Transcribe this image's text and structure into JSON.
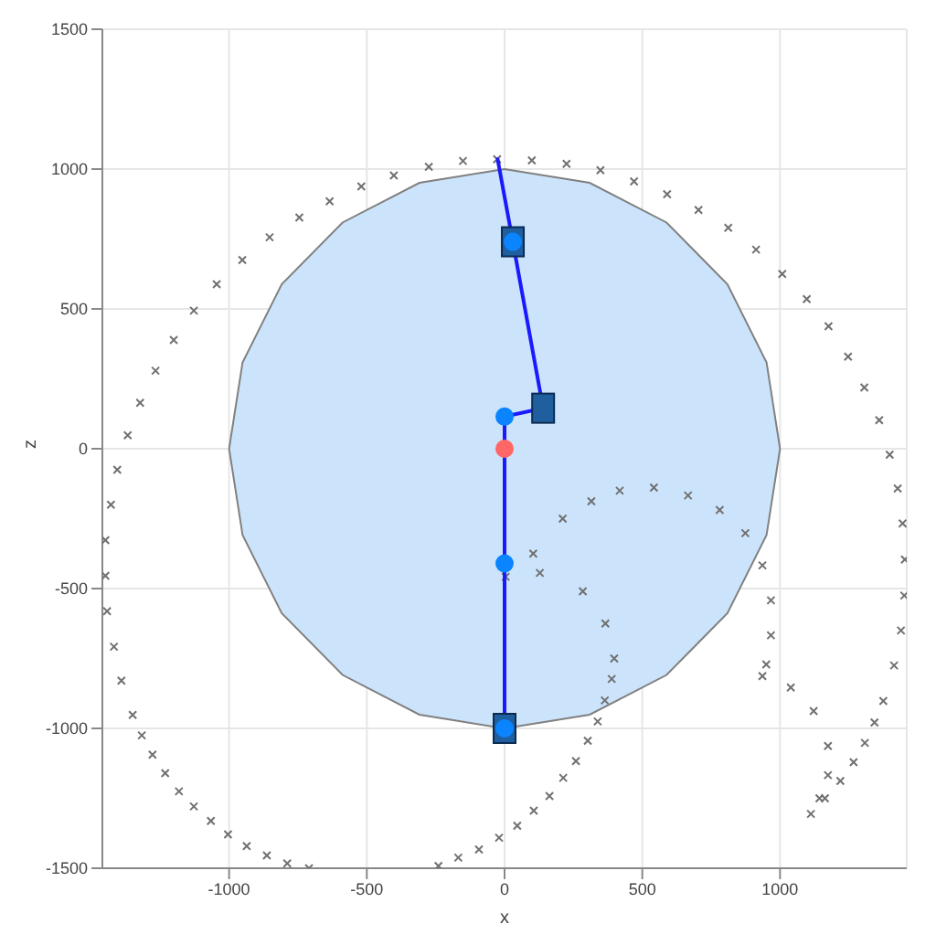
{
  "chart_data": {
    "type": "scatter",
    "xlabel": "x",
    "ylabel": "z",
    "xlim": [
      -1460,
      1460
    ],
    "ylim": [
      -1500,
      1500
    ],
    "xticks": [
      -1000,
      -500,
      0,
      500,
      1000
    ],
    "yticks": [
      -1500,
      -1000,
      -500,
      0,
      500,
      1000,
      1500
    ],
    "grid": true,
    "series": [
      {
        "type": "area",
        "color": "#cce4fb",
        "x": [
          1000,
          951,
          809,
          588,
          309,
          0,
          -309,
          -588,
          -809,
          -951,
          -1000,
          -951,
          -809,
          -588,
          -309,
          0,
          309,
          588,
          809,
          951,
          1000
        ],
        "values": [
          0,
          309,
          588,
          809,
          951,
          1000,
          951,
          809,
          588,
          309,
          0,
          -309,
          -588,
          -809,
          -951,
          -1000,
          -951,
          -809,
          -588,
          -309,
          0
        ]
      },
      {
        "marker": "cross",
        "color": "#707070",
        "x": [
          -1368,
          -1323,
          -1267,
          -1201,
          -1128,
          -1045,
          -952,
          -853,
          -745,
          -635,
          -520,
          -402,
          -275,
          -151,
          -27,
          99,
          225,
          348,
          470,
          590,
          704,
          812,
          913,
          1008,
          1097,
          1176,
          1247,
          1306,
          1360,
          1398,
          1427,
          1445,
          1453,
          1451,
          1439,
          1414,
          1375,
          1343,
          1308,
          1267,
          1219,
          1163,
          -1406,
          -1429,
          -1449,
          -1449,
          -1443,
          -1418,
          -1391,
          -1350,
          -1317,
          -1278,
          -1232,
          -1182,
          -1128,
          -1066,
          -1004,
          -936,
          -863,
          -789,
          -710,
          -240,
          -168,
          -93,
          -20,
          46,
          106,
          163,
          213,
          259,
          302,
          338,
          364,
          389,
          4,
          128,
          284,
          366,
          398,
          104,
          211,
          315,
          418,
          542,
          666,
          781,
          874,
          936,
          967,
          967,
          950,
          936,
          1039,
          1122,
          1174,
          1174,
          1143,
          1112
        ],
        "values": [
          48,
          164,
          279,
          389,
          494,
          588,
          675,
          756,
          827,
          885,
          938,
          977,
          1008,
          1029,
          1035,
          1031,
          1019,
          996,
          956,
          910,
          854,
          790,
          712,
          625,
          535,
          438,
          329,
          219,
          102,
          -21,
          -142,
          -267,
          -396,
          -525,
          -650,
          -775,
          -902,
          -979,
          -1052,
          -1121,
          -1188,
          -1250,
          -75,
          -200,
          -327,
          -454,
          -581,
          -708,
          -829,
          -952,
          -1025,
          -1094,
          -1160,
          -1225,
          -1279,
          -1331,
          -1379,
          -1421,
          -1454,
          -1483,
          -1500,
          -1492,
          -1462,
          -1433,
          -1391,
          -1348,
          -1294,
          -1242,
          -1177,
          -1117,
          -1044,
          -975,
          -900,
          -823,
          -458,
          -444,
          -510,
          -625,
          -750,
          -375,
          -250,
          -188,
          -150,
          -139,
          -167,
          -219,
          -302,
          -417,
          -542,
          -667,
          -771,
          -813,
          -854,
          -938,
          -1063,
          -1167,
          -1250,
          -1306
        ]
      },
      {
        "type": "line",
        "marker": "none",
        "color": "#1a1aff",
        "x": [
          0,
          0,
          0,
          140,
          30,
          -25
        ],
        "values": [
          -1000,
          -410,
          115,
          145,
          740,
          1035
        ]
      },
      {
        "type": "scatter",
        "marker": "square",
        "color": "#1f5fa0",
        "x": [
          0,
          140,
          30
        ],
        "values": [
          -1000,
          145,
          740
        ]
      },
      {
        "type": "scatter",
        "marker": "circle",
        "color": "#0a84ff",
        "x": [
          0,
          0,
          0,
          30
        ],
        "values": [
          -1000,
          -410,
          115,
          740
        ]
      },
      {
        "type": "scatter",
        "marker": "circle",
        "color": "#ff6666",
        "x": [
          0
        ],
        "values": [
          0
        ]
      }
    ]
  }
}
